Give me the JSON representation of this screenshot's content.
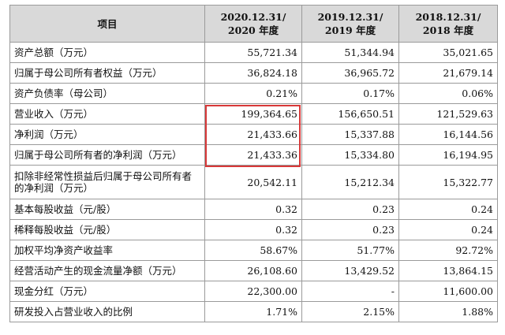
{
  "header": {
    "item": "项目",
    "periods": [
      {
        "date": "2020.12.31/",
        "label": "2020 年度"
      },
      {
        "date": "2019.12.31/",
        "label": "2019 年度"
      },
      {
        "date": "2018.12.31/",
        "label": "2018 年度"
      }
    ]
  },
  "rows": [
    {
      "label": "资产总额（万元）",
      "values": [
        "55,721.34",
        "51,344.94",
        "35,021.65"
      ]
    },
    {
      "label": "归属于母公司所有者权益（万元）",
      "values": [
        "36,824.18",
        "36,965.72",
        "21,679.14"
      ]
    },
    {
      "label": "资产负债率（母公司）",
      "values": [
        "0.21%",
        "0.17%",
        "0.06%"
      ]
    },
    {
      "label": "营业收入（万元）",
      "values": [
        "199,364.65",
        "156,650.51",
        "121,529.63"
      ]
    },
    {
      "label": "净利润（万元）",
      "values": [
        "21,433.66",
        "15,337.88",
        "16,144.56"
      ]
    },
    {
      "label": "归属于母公司所有者的净利润（万元）",
      "values": [
        "21,433.36",
        "15,334.80",
        "16,194.95"
      ]
    },
    {
      "label": "扣除非经常性损益后归属于母公司所有者的净利润（万元）",
      "values": [
        "20,542.11",
        "15,212.34",
        "15,322.77"
      ]
    },
    {
      "label": "基本每股收益（元/股）",
      "values": [
        "0.32",
        "0.23",
        "0.24"
      ]
    },
    {
      "label": "稀释每股收益（元/股）",
      "values": [
        "0.32",
        "0.23",
        "0.24"
      ]
    },
    {
      "label": "加权平均净资产收益率",
      "values": [
        "58.67%",
        "51.77%",
        "92.72%"
      ]
    },
    {
      "label": "经营活动产生的现金流量净额（万元）",
      "values": [
        "26,108.60",
        "13,429.52",
        "13,864.15"
      ]
    },
    {
      "label": "现金分红（万元）",
      "values": [
        "22,300.00",
        "-",
        "11,600.00"
      ]
    },
    {
      "label": "研发投入占营业收入的比例",
      "values": [
        "1.71%",
        "2.15%",
        "1.88%"
      ]
    }
  ],
  "highlight_color": "#d83838"
}
